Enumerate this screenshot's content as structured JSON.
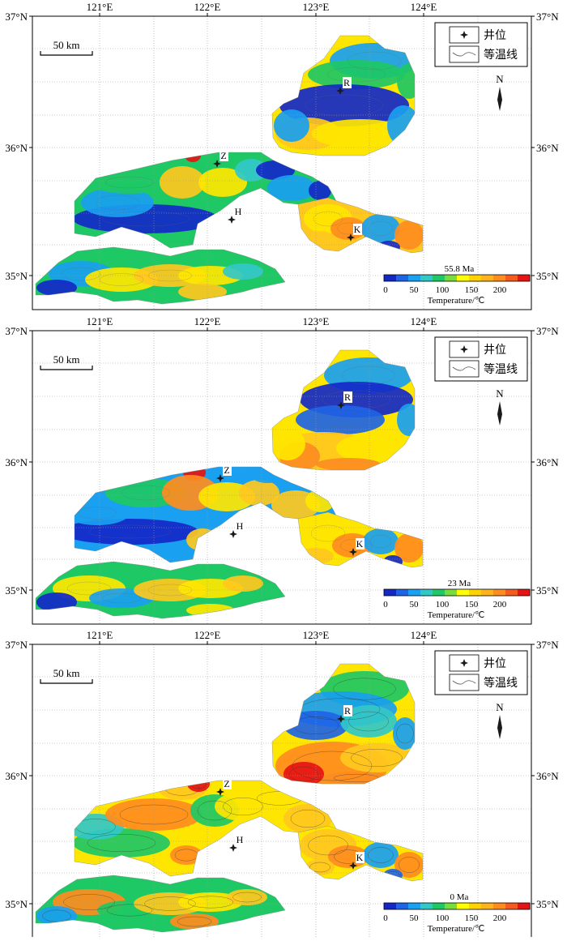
{
  "panels": [
    {
      "age_label": "55.8 Ma"
    },
    {
      "age_label": "23 Ma"
    },
    {
      "age_label": "0 Ma"
    }
  ],
  "lon_labels": [
    "121°E",
    "122°E",
    "123°E",
    "124°E"
  ],
  "lat_labels": [
    "37°N",
    "36°N",
    "35°N"
  ],
  "scale_bar_label": "50 km",
  "north_label": "N",
  "legend": {
    "well": "井位",
    "isotherm": "等温线"
  },
  "wells": [
    "R",
    "Z",
    "H",
    "K"
  ],
  "colorbar": {
    "ticks": [
      "0",
      "50",
      "100",
      "150",
      "200"
    ],
    "title": "Temperature/℃",
    "colors": [
      "#1428c8",
      "#1e64e6",
      "#19a0f0",
      "#32c8c8",
      "#1ec864",
      "#78dc3c",
      "#ffff00",
      "#ffd200",
      "#ffb41e",
      "#ff8c1e",
      "#f55a1e",
      "#e61414"
    ]
  }
}
